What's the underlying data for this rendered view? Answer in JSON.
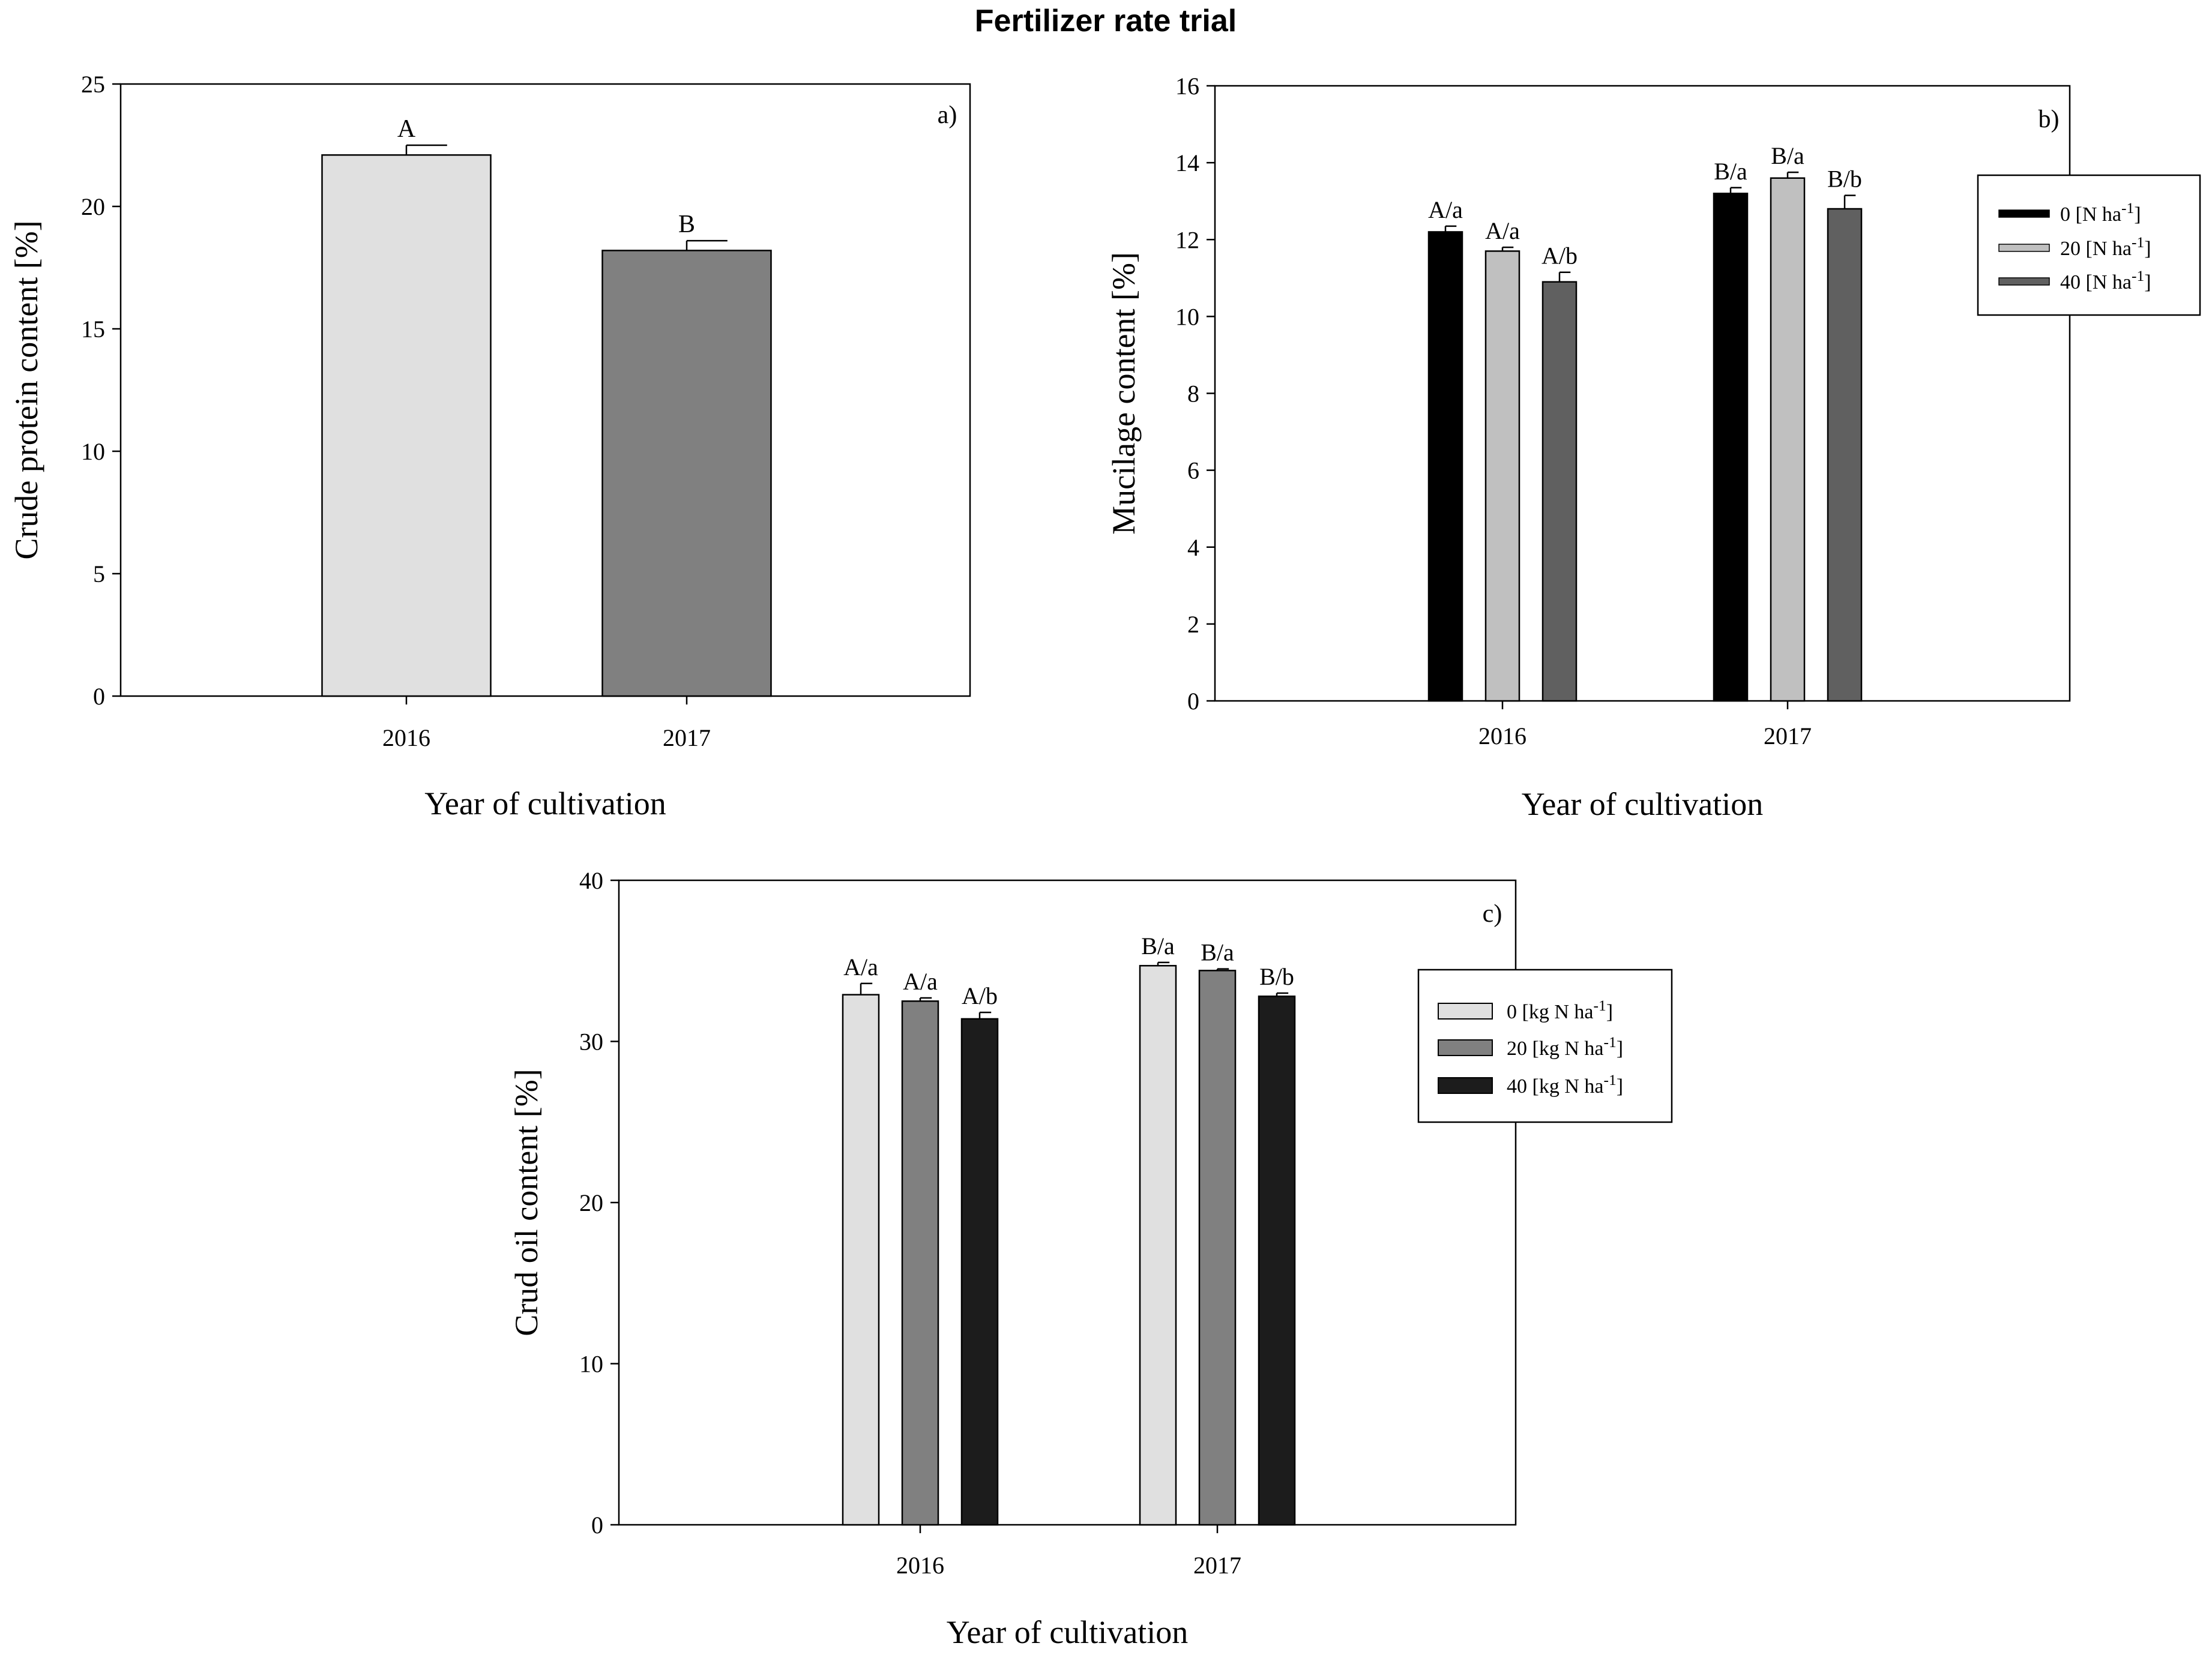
{
  "title": "Fertilizer rate trial",
  "chart_data": [
    {
      "id": "a",
      "type": "bar",
      "panel_label": "a)",
      "title": "",
      "xlabel": "Year of cultivation",
      "ylabel": "Crude protein content [%]",
      "categories": [
        "2016",
        "2017"
      ],
      "ylim": [
        0,
        25
      ],
      "yticks": [
        0,
        5,
        10,
        15,
        20,
        25
      ],
      "series": [
        {
          "name": "",
          "color": "#e0e0e0",
          "values": [
            22.1,
            18.2
          ],
          "errors": [
            0.4,
            0.4
          ],
          "bar_colors": [
            "#e0e0e0",
            "#808080"
          ],
          "labels": [
            "A",
            "B"
          ]
        }
      ],
      "legend": null
    },
    {
      "id": "b",
      "type": "bar",
      "panel_label": "b)",
      "title": "",
      "xlabel": "Year of cultivation",
      "ylabel": "Mucilage content [%]",
      "categories": [
        "2016",
        "2017"
      ],
      "ylim": [
        0,
        16
      ],
      "yticks": [
        0,
        2,
        4,
        6,
        8,
        10,
        12,
        14,
        16
      ],
      "series": [
        {
          "name": "0 [N ha-1]",
          "name_base": "0 [N ha",
          "name_sup": "-1",
          "name_end": "]",
          "color": "#000000",
          "values": [
            12.2,
            13.2
          ],
          "errors": [
            0.15,
            0.15
          ],
          "labels": [
            "A/a",
            "B/a"
          ]
        },
        {
          "name": "20 [N ha-1]",
          "name_base": "20 [N ha",
          "name_sup": "-1",
          "name_end": "]",
          "color": "#c0c0c0",
          "values": [
            11.7,
            13.6
          ],
          "errors": [
            0.1,
            0.15
          ],
          "labels": [
            "A/a",
            "B/a"
          ]
        },
        {
          "name": "40 [N ha-1]",
          "name_base": "40 [N ha",
          "name_sup": "-1",
          "name_end": "]",
          "color": "#606060",
          "values": [
            10.9,
            12.8
          ],
          "errors": [
            0.25,
            0.35
          ],
          "labels": [
            "A/b",
            "B/b"
          ]
        }
      ],
      "legend": {
        "placement": "right",
        "style": "line"
      }
    },
    {
      "id": "c",
      "type": "bar",
      "panel_label": "c)",
      "title": "",
      "xlabel": "Year of cultivation",
      "ylabel": "Crud oil content [%]",
      "categories": [
        "2016",
        "2017"
      ],
      "ylim": [
        0,
        40
      ],
      "yticks": [
        0,
        10,
        20,
        30,
        40
      ],
      "series": [
        {
          "name": "0 [kg N ha-1]",
          "name_base": "0 [kg N ha",
          "name_sup": "-1",
          "name_end": "]",
          "color": "#e0e0e0",
          "values": [
            32.9,
            34.7
          ],
          "errors": [
            0.7,
            0.2
          ],
          "labels": [
            "A/a",
            "B/a"
          ]
        },
        {
          "name": "20 [kg N ha-1]",
          "name_base": "20 [kg N ha",
          "name_sup": "-1",
          "name_end": "]",
          "color": "#808080",
          "values": [
            32.5,
            34.4
          ],
          "errors": [
            0.2,
            0.1
          ],
          "labels": [
            "A/a",
            "B/a"
          ]
        },
        {
          "name": "40 [kg N ha-1]",
          "name_base": "40 [kg N ha",
          "name_sup": "-1",
          "name_end": "]",
          "color": "#1c1c1c",
          "values": [
            31.4,
            32.8
          ],
          "errors": [
            0.4,
            0.2
          ],
          "labels": [
            "A/b",
            "B/b"
          ]
        }
      ],
      "legend": {
        "placement": "right",
        "style": "box"
      }
    }
  ]
}
